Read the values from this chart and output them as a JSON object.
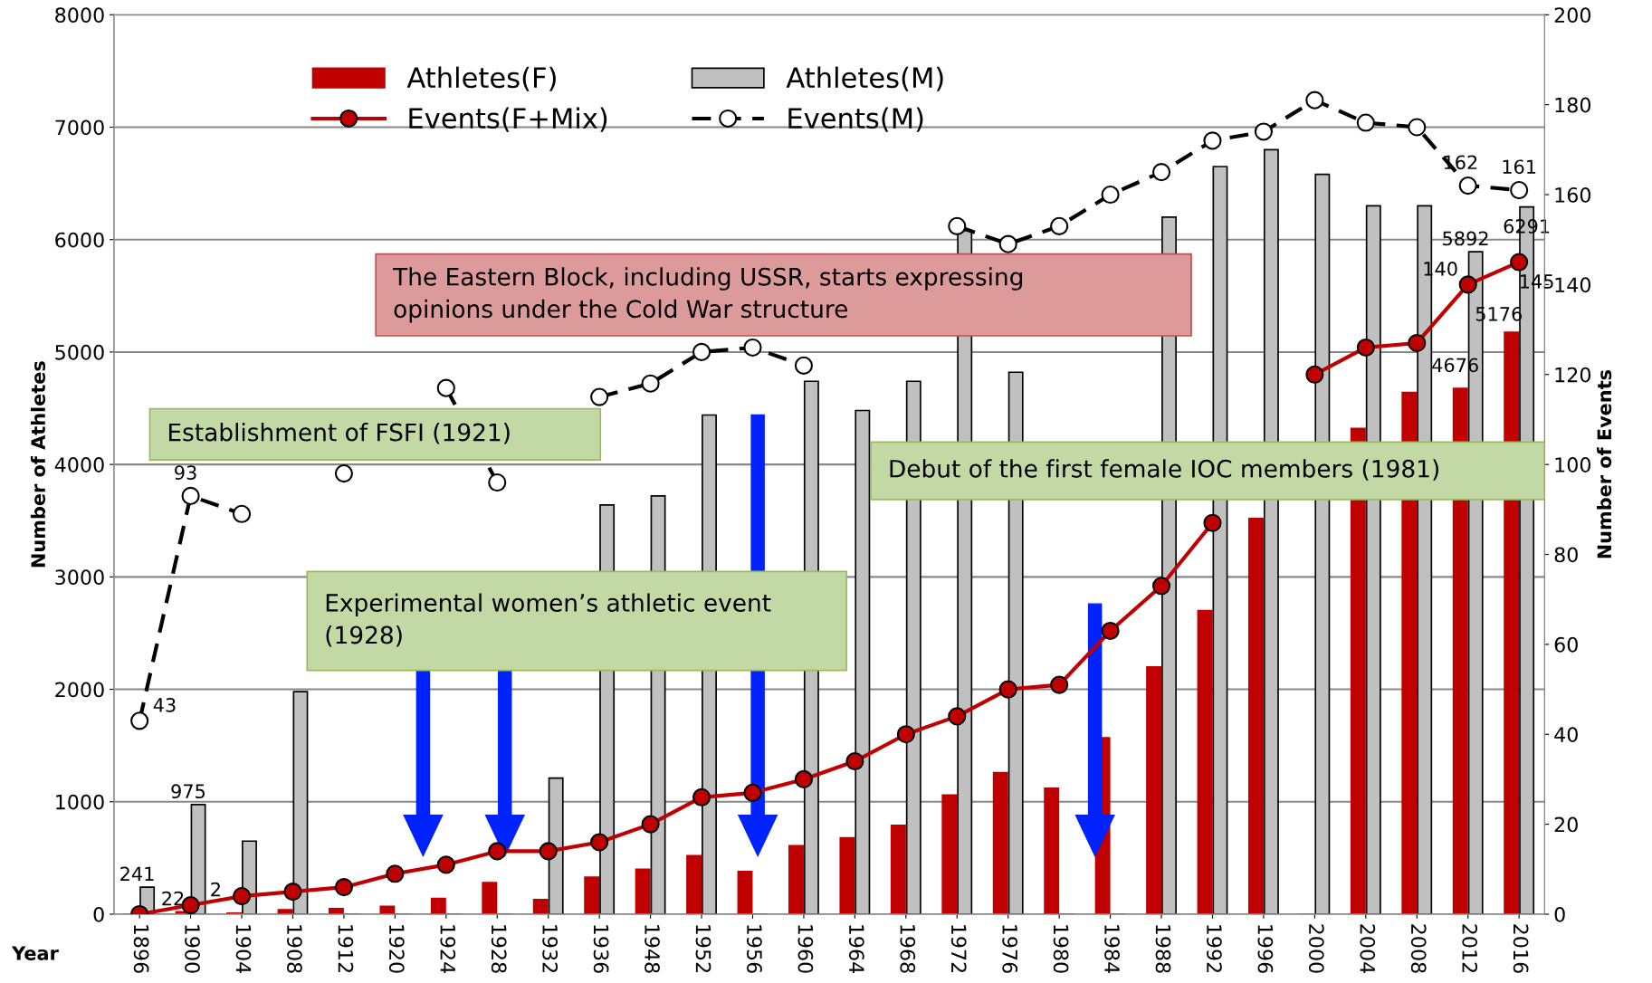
{
  "chart_data": {
    "type": "bar",
    "xlabel": "Year",
    "ylabel": "Number of Athletes",
    "y2label": "Number of Events",
    "categories": [
      "1896",
      "1900",
      "1904",
      "1908",
      "1912",
      "1920",
      "1924",
      "1928",
      "1932",
      "1936",
      "1948",
      "1952",
      "1956",
      "1960",
      "1964",
      "1968",
      "1972",
      "1976",
      "1980",
      "1984",
      "1988",
      "1992",
      "1996",
      "2000",
      "2004",
      "2008",
      "2012",
      "2016"
    ],
    "series": [
      {
        "name": "Athletes(F)",
        "color": "#c00000",
        "values": [
          0,
          22,
          10,
          40,
          50,
          70,
          140,
          280,
          130,
          330,
          400,
          520,
          380,
          610,
          680,
          790,
          1060,
          1260,
          1120,
          1570,
          2200,
          2700,
          3520,
          null,
          4320,
          4640,
          4676,
          5176
        ],
        "value_labels": [
          null,
          "22",
          null,
          null,
          null,
          null,
          null,
          null,
          null,
          null,
          null,
          null,
          null,
          null,
          null,
          null,
          null,
          null,
          null,
          null,
          null,
          null,
          null,
          null,
          null,
          null,
          "4676",
          "5176"
        ]
      },
      {
        "name": "Athletes(M)",
        "color": "#c0c0c0",
        "values": [
          241,
          975,
          650,
          1980,
          null,
          null,
          null,
          null,
          1210,
          3640,
          3720,
          4440,
          null,
          4740,
          4480,
          4740,
          6080,
          4820,
          null,
          null,
          6200,
          6650,
          6800,
          6580,
          6300,
          6300,
          5892,
          6291
        ],
        "value_labels": [
          "241",
          "975",
          null,
          null,
          null,
          null,
          null,
          null,
          null,
          null,
          null,
          null,
          null,
          null,
          null,
          null,
          null,
          null,
          null,
          null,
          null,
          null,
          null,
          null,
          null,
          null,
          "5892",
          "6291"
        ]
      },
      {
        "name": "Events(F+Mix)",
        "type": "line",
        "axis": "y2",
        "color": "#c00000",
        "marker": "circle",
        "line_style": "solid",
        "values": [
          0,
          2,
          4,
          5,
          6,
          9,
          11,
          14,
          14,
          16,
          20,
          26,
          27,
          30,
          34,
          40,
          44,
          50,
          51,
          63,
          73,
          87,
          null,
          120,
          126,
          127,
          140,
          145
        ],
        "value_labels": [
          null,
          "2",
          null,
          null,
          null,
          null,
          null,
          null,
          null,
          null,
          null,
          null,
          null,
          null,
          null,
          null,
          null,
          null,
          null,
          null,
          null,
          null,
          null,
          null,
          null,
          null,
          "140",
          "145"
        ]
      },
      {
        "name": "Events(M)",
        "type": "line",
        "axis": "y2",
        "color": "#000000",
        "marker": "circle",
        "line_style": "dashed",
        "values": [
          43,
          93,
          89,
          null,
          98,
          null,
          117,
          96,
          null,
          115,
          118,
          125,
          126,
          122,
          null,
          null,
          153,
          149,
          153,
          160,
          165,
          172,
          174,
          181,
          176,
          175,
          162,
          161
        ],
        "value_labels": [
          "43",
          "93",
          null,
          null,
          null,
          null,
          null,
          null,
          null,
          null,
          null,
          null,
          null,
          null,
          null,
          null,
          null,
          null,
          null,
          null,
          null,
          null,
          null,
          null,
          null,
          null,
          "162",
          "161"
        ]
      }
    ],
    "ylim": [
      0,
      8000
    ],
    "yticks": [
      0,
      1000,
      2000,
      3000,
      4000,
      5000,
      6000,
      7000,
      8000
    ],
    "y2lim": [
      0,
      200
    ],
    "y2ticks": [
      0,
      20,
      40,
      60,
      80,
      100,
      120,
      140,
      160,
      180,
      200
    ],
    "grid": "y",
    "legend": "top",
    "annotations": [
      "The Eastern Block, including USSR, starts expressing\nopinions under the Cold War structure",
      "Establishment of FSFI (1921)",
      "Debut of the first female IOC members (1981)",
      "Experimental women’s athletic event\n(1928)"
    ]
  }
}
